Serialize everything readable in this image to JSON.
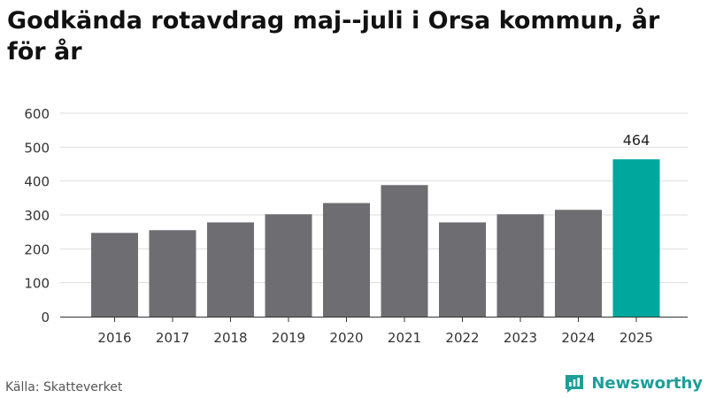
{
  "title": "Godkända rotavdrag maj--juli i Orsa kommun, år för år",
  "source": "Källa: Skatteverket",
  "brand": {
    "name": "Newsworthy",
    "icon": "newsworthy-logo-icon"
  },
  "colors": {
    "bar": "#6e6d72",
    "highlight": "#00a79d",
    "grid": "#dddddd",
    "axis": "#333333"
  },
  "chart_data": {
    "type": "bar",
    "categories": [
      "2016",
      "2017",
      "2018",
      "2019",
      "2020",
      "2021",
      "2022",
      "2023",
      "2024",
      "2025"
    ],
    "values": [
      247,
      255,
      278,
      302,
      335,
      388,
      278,
      302,
      315,
      464
    ],
    "highlight_index": 9,
    "data_labels": [
      {
        "index": 9,
        "text": "464"
      }
    ],
    "yticks": [
      0,
      100,
      200,
      300,
      400,
      500,
      600
    ],
    "ylim": [
      0,
      600
    ],
    "grid": true,
    "xlabel": "",
    "ylabel": ""
  }
}
